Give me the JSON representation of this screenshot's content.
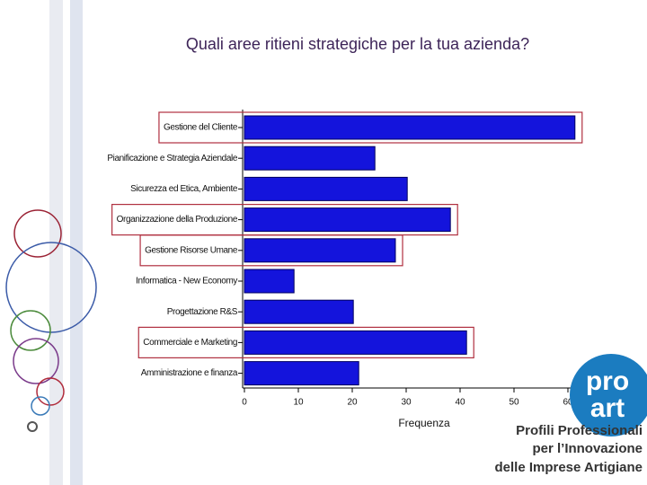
{
  "chart_data": {
    "type": "hbar",
    "title": "Quali aree ritieni strategiche per la tua azienda?",
    "categories": [
      "Gestione del Cliente",
      "Pianificazione e Strategia Aziendale",
      "Sicurezza ed Etica, Ambiente",
      "Organizzazione della Produzione",
      "Gestione Risorse Umane",
      "Informatica - New Economy",
      "Progettazione R&S",
      "Commerciale e Marketing",
      "Amministrazione e finanza"
    ],
    "values": [
      61.3,
      24.2,
      30.2,
      38.2,
      28,
      9.2,
      20.2,
      41.2,
      21.2
    ],
    "highlighted": [
      true,
      false,
      false,
      true,
      true,
      false,
      false,
      true,
      false
    ],
    "color": "#1414dc",
    "highlight_color": "#b03040",
    "xlabel": "Frequenza",
    "xlim": [
      0,
      62
    ],
    "xticks": [
      0,
      10,
      20,
      30,
      40,
      50,
      60
    ]
  },
  "logo": {
    "top": "pro",
    "bottom": "art",
    "lines": [
      "Profili Professionali",
      "per l’Innovazione",
      "delle Imprese Artigiane"
    ]
  }
}
